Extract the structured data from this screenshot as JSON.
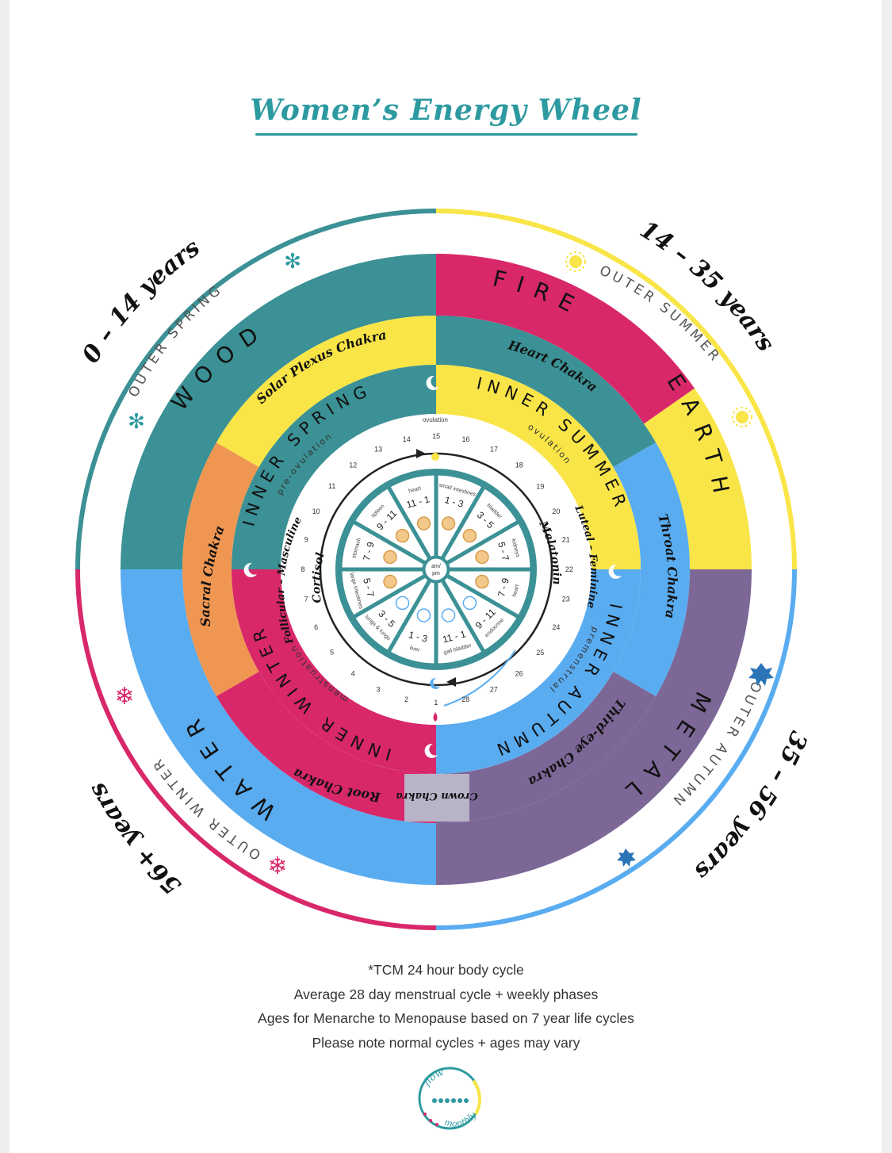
{
  "title": "Women’s Energy Wheel",
  "age_labels": {
    "tl": "0 – 14 years",
    "tr": "14 – 35 years",
    "br": "35 – 56 years",
    "bl": "56+ years"
  },
  "outer_seasons": {
    "tl": "OUTER SPRING",
    "tr": "OUTER SUMMER",
    "br": "OUTER AUTUMN",
    "bl": "OUTER WINTER"
  },
  "elements": {
    "wood": "WOOD",
    "fire": "FIRE",
    "earth": "EARTH",
    "metal": "METAL",
    "water": "WATER"
  },
  "chakras": {
    "solar_plexus": "Solar Plexus Chakra",
    "heart": "Heart Chakra",
    "throat": "Throat Chakra",
    "third_eye": "Third-eye Chakra",
    "crown": "Crown Chakra",
    "root": "Root Chakra",
    "sacral": "Sacral Chakra"
  },
  "inner_seasons": {
    "spring": "INNER SPRING",
    "summer": "INNER SUMMER",
    "autumn": "INNER AUTUMN",
    "winter": "INNER WINTER"
  },
  "phase_sublabels": {
    "spring": "pre-ovulation",
    "summer": "ovulation",
    "autumn": "premenstrual",
    "winter": "menstruation"
  },
  "hormones": {
    "follicular": "Follicular – Masculine",
    "luteal": "Luteal – Feminine",
    "cortisol": "Cortisol",
    "melatonin": "Melatonin"
  },
  "cycle": {
    "top_label": "ovulation",
    "days": [
      "1",
      "2",
      "3",
      "4",
      "5",
      "6",
      "7",
      "8",
      "9",
      "10",
      "11",
      "12",
      "13",
      "14",
      "15",
      "16",
      "17",
      "18",
      "19",
      "20",
      "21",
      "22",
      "23",
      "24",
      "25",
      "26",
      "27",
      "28"
    ]
  },
  "center_label": "am/ pm",
  "tcm_clock": [
    {
      "organ": "small intestines",
      "hours": "1 - 3"
    },
    {
      "organ": "bladder",
      "hours": "3 - 5"
    },
    {
      "organ": "kidneys",
      "hours": "5 - 7"
    },
    {
      "organ": "heart",
      "hours": "7 - 9"
    },
    {
      "organ": "endocrine",
      "hours": "9 - 11"
    },
    {
      "organ": "gall bladder",
      "hours": "11 - 1"
    },
    {
      "organ": "liver",
      "hours": "1 - 3"
    },
    {
      "organ": "lungs & lungs",
      "hours": "3 - 5"
    },
    {
      "organ": "large intestines",
      "hours": "5 - 7"
    },
    {
      "organ": "stomach",
      "hours": "7 - 9"
    },
    {
      "organ": "spleen",
      "hours": "9 - 11"
    },
    {
      "organ": "heart",
      "hours": "11 - 1"
    }
  ],
  "notes": [
    "*TCM 24 hour body cycle",
    "Average 28 day menstrual cycle + weekly phases",
    "Ages for Menarche to Menopause based on 7 year life cycles",
    "Please note normal cycles + ages may vary"
  ],
  "logo_text": [
    "flow",
    "monthly"
  ],
  "colors": {
    "teal": "#3b9195",
    "magenta": "#d8286a",
    "yellow": "#f9e547",
    "blue": "#5aacf0",
    "purple": "#7c6797",
    "orange": "#ef9752",
    "lavender": "#b9b3c8",
    "title": "#2c9aa0"
  }
}
